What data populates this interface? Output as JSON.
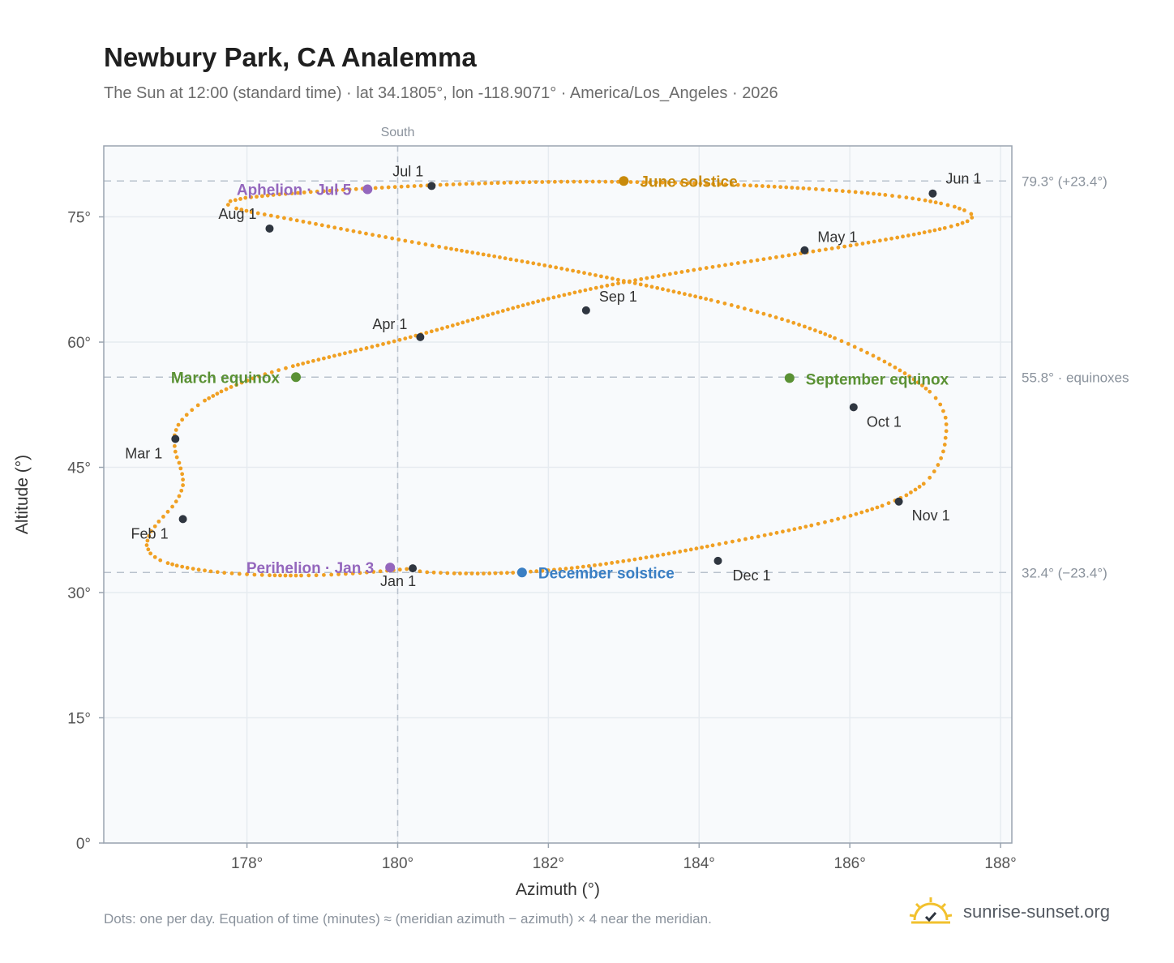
{
  "header": {
    "title": "Newbury Park, CA Analemma",
    "subtitle": "The Sun at 12:00 (standard time) · lat 34.1805°, lon -118.9071° · America/Los_Angeles · 2026"
  },
  "footer": {
    "note": "Dots: one per day. Equation of time (minutes) ≈ (meridian azimuth − azimuth) × 4 near the meridian.",
    "brand": "sunrise-sunset.org"
  },
  "colors": {
    "path": "#f0a023",
    "month_marker": "#2f3640",
    "june": "#c88a0b",
    "december": "#3a7fc4",
    "equinox": "#5a9134",
    "apsis": "#9467bd",
    "grid": "#e6ebf0",
    "plot_bg": "#f8fafc",
    "frame": "#9aa4b0",
    "ref_line": "#b8c1cc"
  },
  "chart_data": {
    "type": "scatter",
    "xlabel": "Azimuth (°)",
    "ylabel": "Altitude (°)",
    "xlim": [
      176.1,
      188.15
    ],
    "ylim": [
      0,
      83.5
    ],
    "x_ticks": [
      178,
      180,
      182,
      184,
      186,
      188
    ],
    "x_tick_labels": [
      "178°",
      "180°",
      "182°",
      "184°",
      "186°",
      "188°"
    ],
    "y_ticks": [
      0,
      15,
      30,
      45,
      60,
      75
    ],
    "y_tick_labels": [
      "0°",
      "15°",
      "30°",
      "45°",
      "60°",
      "75°"
    ],
    "grid": true,
    "meridian": {
      "azimuth": 180,
      "label": "South"
    },
    "reference_lines": [
      {
        "altitude": 79.3,
        "label": "79.3° (+23.4°)"
      },
      {
        "altitude": 55.8,
        "label": "55.8° · equinoxes"
      },
      {
        "altitude": 32.4,
        "label": "32.4° (−23.4°)"
      }
    ],
    "path_points": [
      [
        180.21,
        32.89
      ],
      [
        180.03,
        32.75
      ],
      [
        179.86,
        32.62
      ],
      [
        179.68,
        32.48
      ],
      [
        179.5,
        32.35
      ],
      [
        179.31,
        32.24
      ],
      [
        179.12,
        32.14
      ],
      [
        178.92,
        32.07
      ],
      [
        178.72,
        32.04
      ],
      [
        178.51,
        32.04
      ],
      [
        178.3,
        32.07
      ],
      [
        178.1,
        32.14
      ],
      [
        177.9,
        32.24
      ],
      [
        177.7,
        32.37
      ],
      [
        177.52,
        32.54
      ],
      [
        177.36,
        32.74
      ],
      [
        177.21,
        32.97
      ],
      [
        177.07,
        33.23
      ],
      [
        176.95,
        33.53
      ],
      [
        176.85,
        33.87
      ],
      [
        176.78,
        34.25
      ],
      [
        176.72,
        34.68
      ],
      [
        176.69,
        35.17
      ],
      [
        176.67,
        35.68
      ],
      [
        176.68,
        36.22
      ],
      [
        176.7,
        36.78
      ],
      [
        176.73,
        37.35
      ],
      [
        176.78,
        37.93
      ],
      [
        176.83,
        38.51
      ],
      [
        176.89,
        39.09
      ],
      [
        176.95,
        39.68
      ],
      [
        177.01,
        40.29
      ],
      [
        177.06,
        40.91
      ],
      [
        177.1,
        41.55
      ],
      [
        177.13,
        42.2
      ],
      [
        177.15,
        42.86
      ],
      [
        177.15,
        43.53
      ],
      [
        177.14,
        44.2
      ],
      [
        177.12,
        44.87
      ],
      [
        177.1,
        45.54
      ],
      [
        177.07,
        46.21
      ],
      [
        177.05,
        46.88
      ],
      [
        177.04,
        47.55
      ],
      [
        177.04,
        48.2
      ],
      [
        177.04,
        48.84
      ],
      [
        177.06,
        49.47
      ],
      [
        177.09,
        50.09
      ],
      [
        177.14,
        50.7
      ],
      [
        177.2,
        51.29
      ],
      [
        177.27,
        51.87
      ],
      [
        177.35,
        52.44
      ],
      [
        177.44,
        53.0
      ],
      [
        177.55,
        53.55
      ],
      [
        177.66,
        54.09
      ],
      [
        177.79,
        54.62
      ],
      [
        177.93,
        55.14
      ],
      [
        178.08,
        55.65
      ],
      [
        178.24,
        56.15
      ],
      [
        178.42,
        56.64
      ],
      [
        178.61,
        57.12
      ],
      [
        178.81,
        57.59
      ],
      [
        179.02,
        58.05
      ],
      [
        179.23,
        58.51
      ],
      [
        179.44,
        58.97
      ],
      [
        179.66,
        59.44
      ],
      [
        179.88,
        59.93
      ],
      [
        180.1,
        60.43
      ],
      [
        180.31,
        60.94
      ],
      [
        180.52,
        61.46
      ],
      [
        180.73,
        61.99
      ],
      [
        180.93,
        62.52
      ],
      [
        181.13,
        63.05
      ],
      [
        181.33,
        63.57
      ],
      [
        181.53,
        64.08
      ],
      [
        181.73,
        64.57
      ],
      [
        181.93,
        65.05
      ],
      [
        182.14,
        65.5
      ],
      [
        182.35,
        65.94
      ],
      [
        182.56,
        66.36
      ],
      [
        182.78,
        66.77
      ],
      [
        183.0,
        67.16
      ],
      [
        183.23,
        67.54
      ],
      [
        183.46,
        67.91
      ],
      [
        183.69,
        68.28
      ],
      [
        183.93,
        68.64
      ],
      [
        184.18,
        69.0
      ],
      [
        184.43,
        69.35
      ],
      [
        184.69,
        69.7
      ],
      [
        184.94,
        70.05
      ],
      [
        185.19,
        70.4
      ],
      [
        185.43,
        70.75
      ],
      [
        185.68,
        71.1
      ],
      [
        185.93,
        71.45
      ],
      [
        186.17,
        71.8
      ],
      [
        186.4,
        72.16
      ],
      [
        186.63,
        72.52
      ],
      [
        186.85,
        72.89
      ],
      [
        187.06,
        73.27
      ],
      [
        187.26,
        73.66
      ],
      [
        187.43,
        74.06
      ],
      [
        187.56,
        74.48
      ],
      [
        187.62,
        74.91
      ],
      [
        187.61,
        75.35
      ],
      [
        187.52,
        75.79
      ],
      [
        187.39,
        76.21
      ],
      [
        187.21,
        76.61
      ],
      [
        187.0,
        76.98
      ],
      [
        186.75,
        77.32
      ],
      [
        186.47,
        77.63
      ],
      [
        186.16,
        77.91
      ],
      [
        185.82,
        78.16
      ],
      [
        185.46,
        78.38
      ],
      [
        185.08,
        78.58
      ],
      [
        184.68,
        78.76
      ],
      [
        184.27,
        78.91
      ],
      [
        183.85,
        79.04
      ],
      [
        183.43,
        79.13
      ],
      [
        183.01,
        79.19
      ],
      [
        182.59,
        79.22
      ],
      [
        182.17,
        79.21
      ],
      [
        181.75,
        79.16
      ],
      [
        181.33,
        79.07
      ],
      [
        180.91,
        78.95
      ],
      [
        180.48,
        78.8
      ],
      [
        180.05,
        78.62
      ],
      [
        179.62,
        78.42
      ],
      [
        179.19,
        78.19
      ],
      [
        178.76,
        77.93
      ],
      [
        178.35,
        77.63
      ],
      [
        177.98,
        77.28
      ],
      [
        177.78,
        76.88
      ],
      [
        177.75,
        76.45
      ],
      [
        177.86,
        76.01
      ],
      [
        178.06,
        75.58
      ],
      [
        178.32,
        75.15
      ],
      [
        178.58,
        74.72
      ],
      [
        178.83,
        74.29
      ],
      [
        179.08,
        73.86
      ],
      [
        179.33,
        73.43
      ],
      [
        179.58,
        73.0
      ],
      [
        179.84,
        72.57
      ],
      [
        180.1,
        72.14
      ],
      [
        180.37,
        71.71
      ],
      [
        180.64,
        71.28
      ],
      [
        180.92,
        70.84
      ],
      [
        181.21,
        70.39
      ],
      [
        181.5,
        69.92
      ],
      [
        181.8,
        69.44
      ],
      [
        182.1,
        68.94
      ],
      [
        182.4,
        68.42
      ],
      [
        182.7,
        67.88
      ],
      [
        183.0,
        67.33
      ],
      [
        183.3,
        66.77
      ],
      [
        183.59,
        66.2
      ],
      [
        183.88,
        65.62
      ],
      [
        184.16,
        65.03
      ],
      [
        184.43,
        64.43
      ],
      [
        184.69,
        63.81
      ],
      [
        184.94,
        63.18
      ],
      [
        185.18,
        62.53
      ],
      [
        185.4,
        61.86
      ],
      [
        185.61,
        61.18
      ],
      [
        185.8,
        60.48
      ],
      [
        185.98,
        59.78
      ],
      [
        186.15,
        59.08
      ],
      [
        186.31,
        58.37
      ],
      [
        186.46,
        57.67
      ],
      [
        186.6,
        56.97
      ],
      [
        186.73,
        56.26
      ],
      [
        186.85,
        55.54
      ],
      [
        186.96,
        54.81
      ],
      [
        187.06,
        54.06
      ],
      [
        187.14,
        53.3
      ],
      [
        187.2,
        52.53
      ],
      [
        187.24,
        51.74
      ],
      [
        187.27,
        50.95
      ],
      [
        187.28,
        50.15
      ],
      [
        187.28,
        49.34
      ],
      [
        187.27,
        48.53
      ],
      [
        187.26,
        47.72
      ],
      [
        187.24,
        46.9
      ],
      [
        187.21,
        46.09
      ],
      [
        187.17,
        45.29
      ],
      [
        187.12,
        44.51
      ],
      [
        187.06,
        43.76
      ],
      [
        186.98,
        43.03
      ],
      [
        186.87,
        42.33
      ],
      [
        186.75,
        41.66
      ],
      [
        186.6,
        41.02
      ],
      [
        186.43,
        40.4
      ],
      [
        186.23,
        39.8
      ],
      [
        186.01,
        39.21
      ],
      [
        185.76,
        38.62
      ],
      [
        185.49,
        38.04
      ],
      [
        185.19,
        37.45
      ],
      [
        184.87,
        36.86
      ],
      [
        184.53,
        36.26
      ],
      [
        184.18,
        35.65
      ],
      [
        183.82,
        35.03
      ],
      [
        183.45,
        34.43
      ],
      [
        183.07,
        33.86
      ],
      [
        182.69,
        33.35
      ],
      [
        182.31,
        32.93
      ],
      [
        181.92,
        32.6
      ],
      [
        181.53,
        32.38
      ],
      [
        181.14,
        32.28
      ],
      [
        180.75,
        32.3
      ],
      [
        180.39,
        32.44
      ],
      [
        180.2,
        32.66
      ]
    ],
    "month_markers": [
      {
        "label": "Jan 1",
        "x": 180.2,
        "y": 32.9
      },
      {
        "label": "Feb 1",
        "x": 177.15,
        "y": 38.8
      },
      {
        "label": "Mar 1",
        "x": 177.05,
        "y": 48.4
      },
      {
        "label": "Apr 1",
        "x": 180.3,
        "y": 60.6
      },
      {
        "label": "May 1",
        "x": 185.4,
        "y": 71.0
      },
      {
        "label": "Jun 1",
        "x": 187.1,
        "y": 77.8
      },
      {
        "label": "Jul 1",
        "x": 180.45,
        "y": 78.7
      },
      {
        "label": "Aug 1",
        "x": 178.3,
        "y": 73.6
      },
      {
        "label": "Sep 1",
        "x": 182.5,
        "y": 63.8
      },
      {
        "label": "Oct 1",
        "x": 186.05,
        "y": 52.2
      },
      {
        "label": "Nov 1",
        "x": 186.65,
        "y": 40.9
      },
      {
        "label": "Dec 1",
        "x": 184.25,
        "y": 33.8
      }
    ],
    "events": [
      {
        "key": "june",
        "label": "June solstice",
        "x": 183.0,
        "y": 79.3
      },
      {
        "key": "december",
        "label": "December solstice",
        "x": 181.65,
        "y": 32.4
      },
      {
        "key": "equinox",
        "label": "March equinox",
        "x": 178.65,
        "y": 55.8
      },
      {
        "key": "equinox",
        "label": "September equinox",
        "x": 185.2,
        "y": 55.7
      },
      {
        "key": "apsis",
        "label": "Aphelion · Jul 5",
        "x": 179.6,
        "y": 78.3
      },
      {
        "key": "apsis",
        "label": "Perihelion · Jan 3",
        "x": 179.9,
        "y": 33.0
      }
    ]
  }
}
